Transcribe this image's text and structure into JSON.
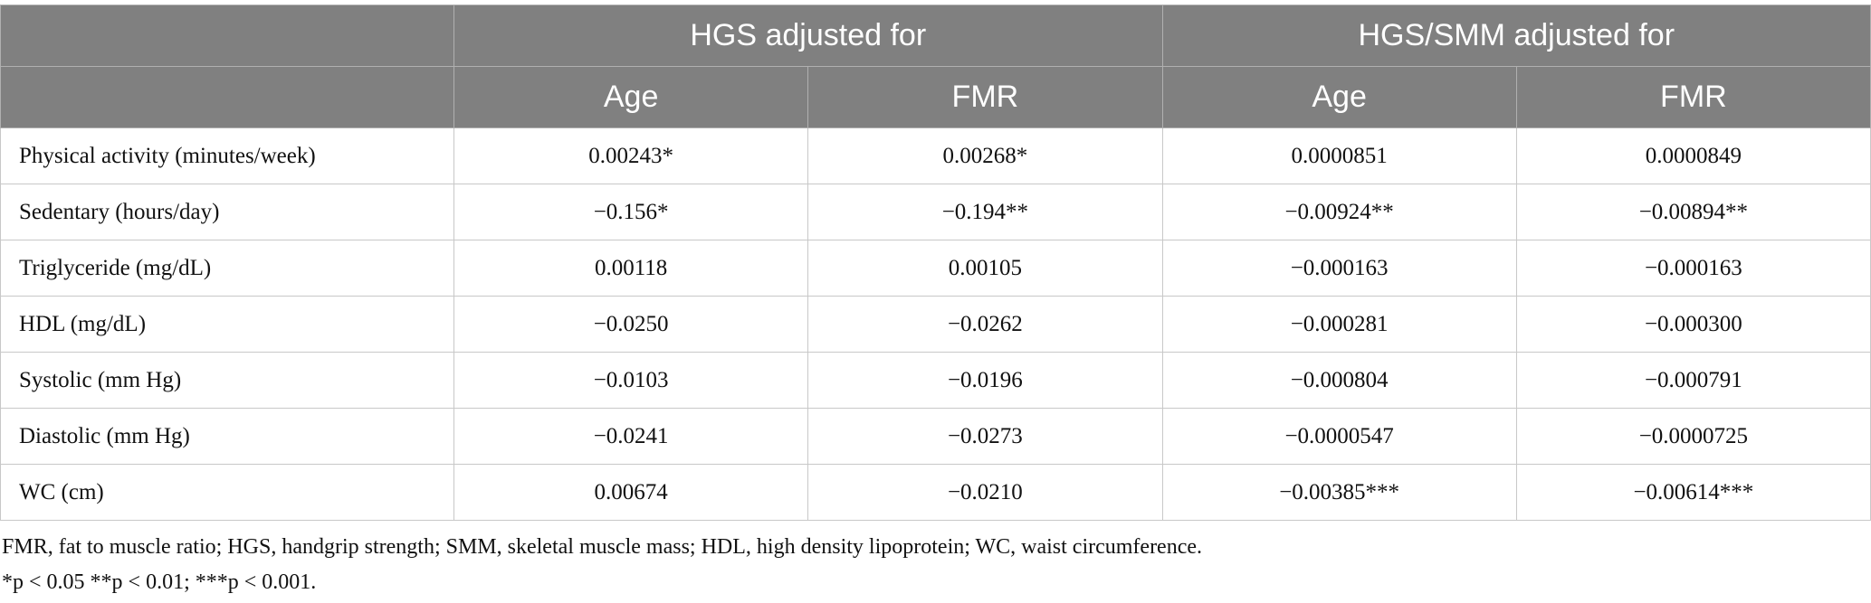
{
  "table": {
    "group_headers": [
      "HGS adjusted for",
      "HGS/SMM adjusted for"
    ],
    "sub_headers": [
      "Age",
      "FMR",
      "Age",
      "FMR"
    ],
    "rows": [
      [
        "Physical activity (minutes/week)",
        "0.00243*",
        "0.00268*",
        "0.0000851",
        "0.0000849"
      ],
      [
        "Sedentary (hours/day)",
        "−0.156*",
        "−0.194**",
        "−0.00924**",
        "−0.00894**"
      ],
      [
        "Triglyceride (mg/dL)",
        "0.00118",
        "0.00105",
        "−0.000163",
        "−0.000163"
      ],
      [
        "HDL (mg/dL)",
        "−0.0250",
        "−0.0262",
        "−0.000281",
        "−0.000300"
      ],
      [
        "Systolic (mm Hg)",
        "−0.0103",
        "−0.0196",
        "−0.000804",
        "−0.000791"
      ],
      [
        "Diastolic (mm Hg)",
        "−0.0241",
        "−0.0273",
        "−0.0000547",
        "−0.0000725"
      ],
      [
        "WC (cm)",
        "0.00674",
        "−0.0210",
        "−0.00385***",
        "−0.00614***"
      ]
    ]
  },
  "footnotes": [
    "FMR, fat to muscle ratio; HGS, handgrip strength; SMM, skeletal muscle mass; HDL, high density lipoprotein; WC, waist circumference.",
    "*p < 0.05 **p < 0.01; ***p < 0.001."
  ]
}
